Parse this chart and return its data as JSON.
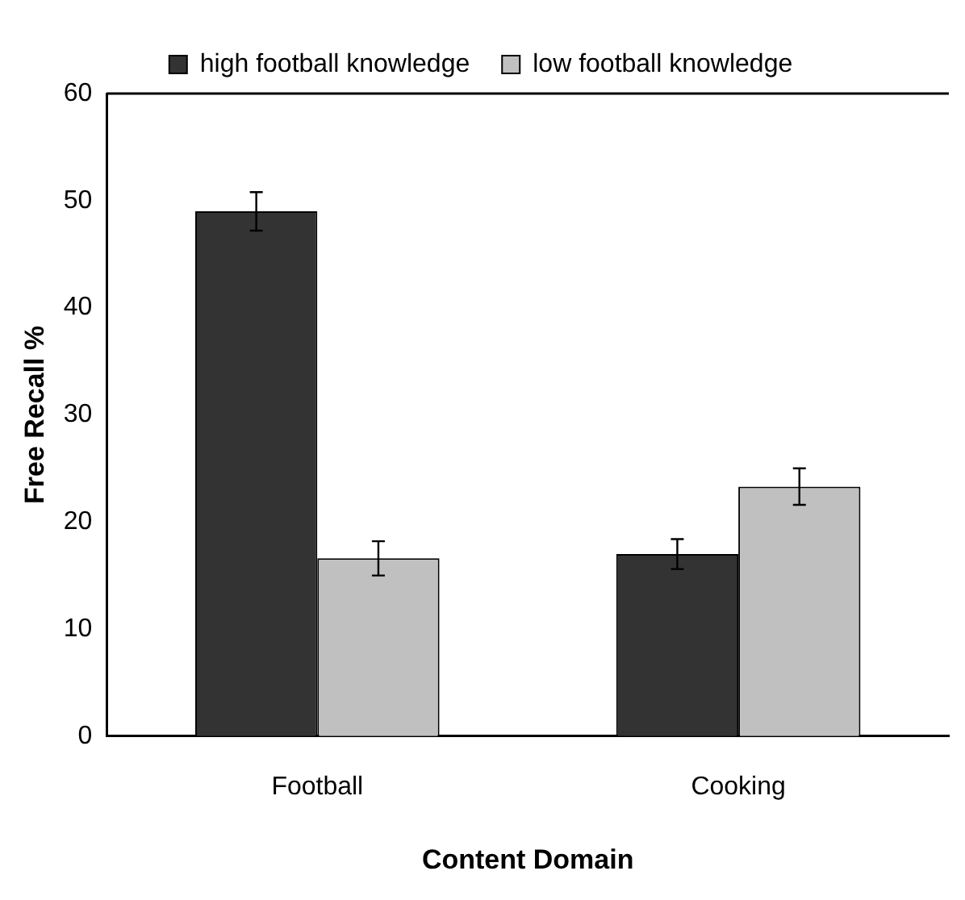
{
  "chart_data": {
    "type": "bar",
    "xlabel": "Content Domain",
    "ylabel": "Free Recall %",
    "categories": [
      "Football",
      "Cooking"
    ],
    "series": [
      {
        "name": "high football knowledge",
        "color": "#333333",
        "values": [
          49,
          17
        ],
        "errors": [
          1.8,
          1.4
        ]
      },
      {
        "name": "low football knowledge",
        "color": "#c0c0c0",
        "values": [
          16.6,
          23.3
        ],
        "errors": [
          1.6,
          1.7
        ]
      }
    ],
    "ylim": [
      0,
      60
    ],
    "yticks": [
      0,
      10,
      20,
      30,
      40,
      50,
      60
    ],
    "grid": false,
    "legend": "top"
  }
}
